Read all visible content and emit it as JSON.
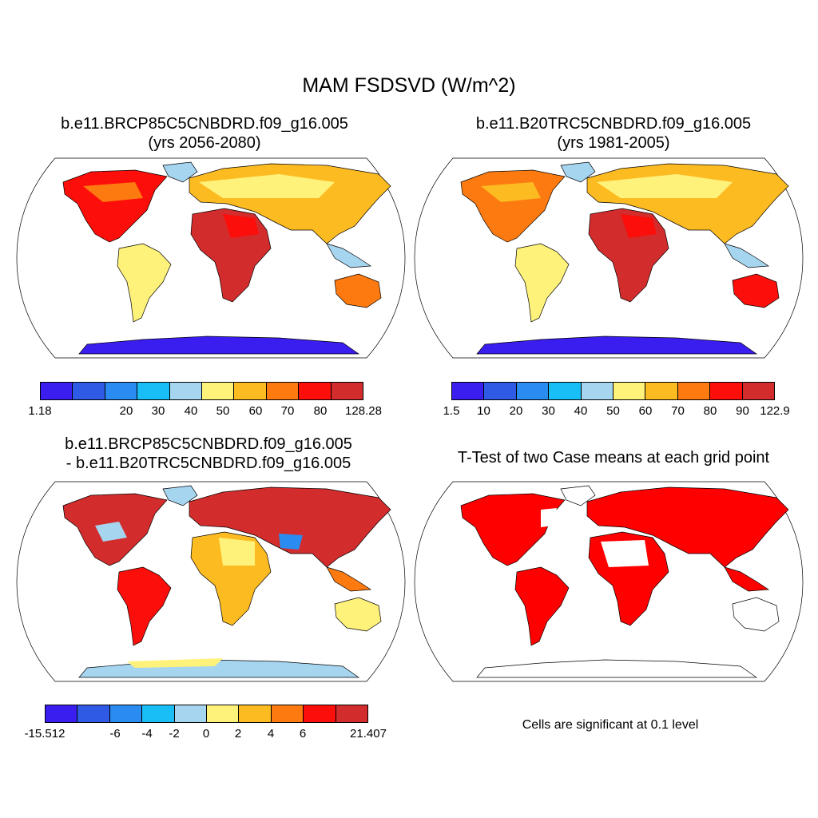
{
  "title": "MAM FSDSVD (W/m^2)",
  "panels": [
    {
      "id": "case",
      "title_line1": "b.e11.BRCP85C5CNBDRD.f09_g16.005",
      "title_line2": "(yrs 2056-2080)"
    },
    {
      "id": "control",
      "title_line1": "b.e11.B20TRC5CNBDRD.f09_g16.005",
      "title_line2": "(yrs 1981-2005)"
    },
    {
      "id": "difference",
      "title_line1": "b.e11.BRCP85C5CNBDRD.f09_g16.005",
      "title_line2": "- b.e11.B20TRC5CNBDRD.f09_g16.005"
    },
    {
      "id": "ttest",
      "title_line1": "T-Test of two Case means at each grid point"
    }
  ],
  "colorbars": [
    {
      "labels": [
        "1.18",
        "",
        "20",
        "30",
        "40",
        "50",
        "60",
        "70",
        "80",
        "",
        "128.28"
      ]
    },
    {
      "labels": [
        "1.5",
        "10",
        "20",
        "30",
        "40",
        "50",
        "60",
        "70",
        "80",
        "90",
        "122.9"
      ]
    },
    {
      "labels": [
        "-15.512",
        "",
        "-6",
        "-4",
        "-2",
        "0",
        "2",
        "4",
        "6",
        "",
        "21.407"
      ]
    }
  ],
  "colors": [
    "#3a1ef0",
    "#2f5ae6",
    "#2a8cf0",
    "#18bef5",
    "#a6d5f0",
    "#fff27a",
    "#fdbb22",
    "#fd7a10",
    "#fc0e0a",
    "#d22c2c"
  ],
  "significance_color": "#ff0000",
  "note": "Cells are significant at 0.1 level"
}
